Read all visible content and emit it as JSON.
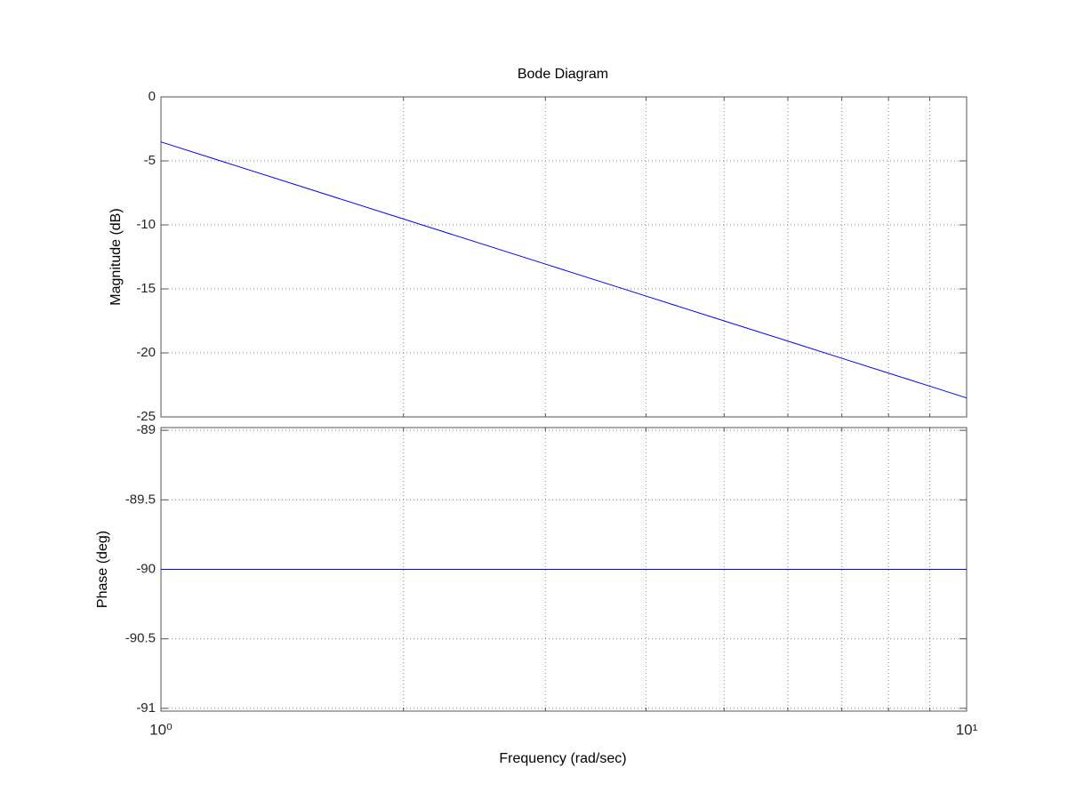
{
  "chart_data": [
    {
      "type": "line",
      "title": "Bode Diagram",
      "ylabel": "Magnitude (dB)",
      "xlog": true,
      "xlim": [
        1,
        10
      ],
      "xminorticks": [
        2,
        3,
        4,
        5,
        6,
        7,
        8,
        9
      ],
      "ylim": [
        -25,
        0
      ],
      "yticks": [
        -25,
        -20,
        -15,
        -10,
        -5,
        0
      ],
      "grid": true,
      "color": "#0000ff",
      "x": [
        1,
        2,
        3,
        4,
        5,
        6,
        7,
        8,
        9,
        10
      ],
      "values": [
        -3.52,
        -9.54,
        -13.06,
        -15.56,
        -17.5,
        -19.08,
        -20.42,
        -21.58,
        -22.6,
        -23.52
      ]
    },
    {
      "type": "line",
      "ylabel": "Phase (deg)",
      "xlabel": "Frequency  (rad/sec)",
      "xlog": true,
      "xlim": [
        1,
        10
      ],
      "xticks": [
        {
          "value": 1,
          "label": "10⁰"
        },
        {
          "value": 10,
          "label": "10¹"
        }
      ],
      "xminorticks": [
        2,
        3,
        4,
        5,
        6,
        7,
        8,
        9
      ],
      "ylim": [
        -91.02,
        -88.98
      ],
      "yticks": [
        -91,
        -90.5,
        -90,
        -89.5,
        -89
      ],
      "grid": true,
      "color": "#0000ff",
      "x": [
        1,
        10
      ],
      "values": [
        -90,
        -90
      ]
    }
  ]
}
